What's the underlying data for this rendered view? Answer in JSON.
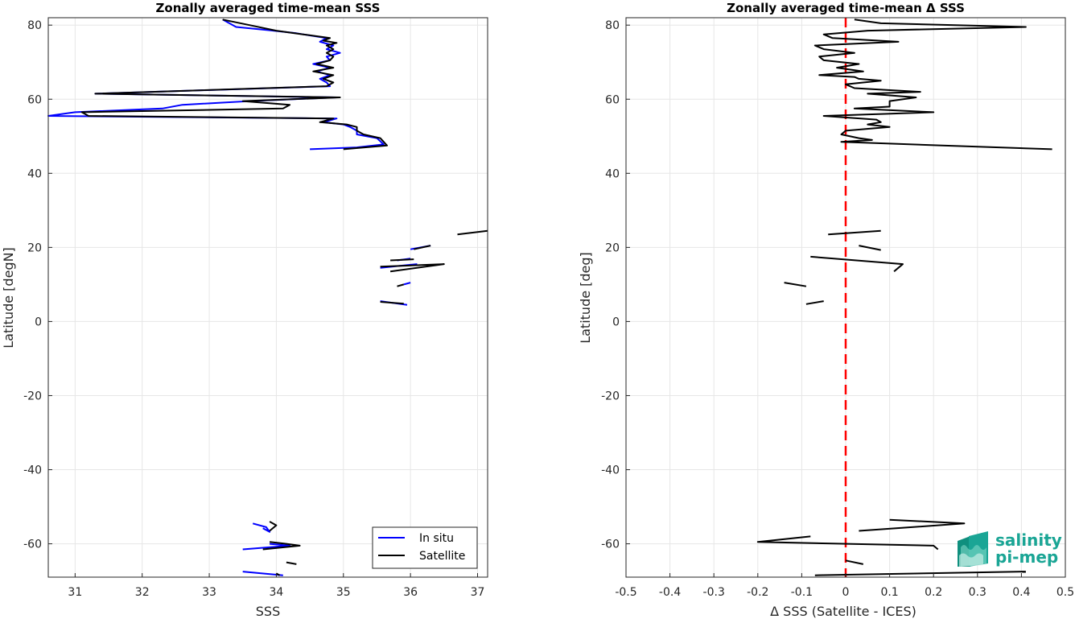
{
  "colors": {
    "insitu": "#0000ff",
    "satellite": "#000000",
    "zero_line": "#ff0000",
    "grid": "#e6e6e6",
    "axis": "#262626",
    "logo": "#1aa595"
  },
  "logo": {
    "line1": "salinity",
    "line2": "pi-mep"
  },
  "chart_data": [
    {
      "type": "line",
      "title": "Zonally averaged time-mean SSS",
      "xlabel": "SSS",
      "ylabel": "Latitude [degN]",
      "xlim": [
        30.6,
        37.15
      ],
      "ylim": [
        -69,
        82
      ],
      "xticks": [
        31,
        32,
        33,
        34,
        35,
        36,
        37
      ],
      "yticks": [
        -60,
        -40,
        -20,
        0,
        20,
        40,
        60,
        80
      ],
      "grid": true,
      "legend": {
        "position": "bottom-right",
        "entries": [
          "In situ",
          "Satellite"
        ]
      },
      "series": [
        {
          "name": "In situ",
          "color": "#0000ff",
          "segments": [
            [
              [
                33.2,
                81.5
              ],
              [
                33.4,
                79.5
              ],
              [
                33.9,
                78.6
              ],
              [
                34.3,
                77.8
              ],
              [
                34.75,
                76.5
              ],
              [
                34.65,
                75.5
              ],
              [
                34.85,
                74.5
              ],
              [
                34.75,
                73.5
              ],
              [
                34.95,
                72.5
              ],
              [
                34.75,
                71.5
              ],
              [
                34.8,
                70.5
              ],
              [
                34.55,
                69.5
              ],
              [
                34.8,
                68.5
              ],
              [
                34.6,
                67.5
              ],
              [
                34.8,
                66.5
              ],
              [
                34.65,
                65.5
              ],
              [
                34.75,
                64.5
              ],
              [
                34.8,
                63.5
              ],
              [
                31.3,
                61.5
              ],
              [
                34.9,
                60.5
              ],
              [
                33.6,
                59.5
              ],
              [
                32.6,
                58.5
              ],
              [
                32.3,
                57.5
              ],
              [
                31.0,
                56.5
              ],
              [
                30.6,
                55.5
              ],
              [
                34.9,
                54.8
              ],
              [
                34.7,
                53.8
              ],
              [
                35.0,
                53.2
              ],
              [
                35.1,
                52.5
              ],
              [
                35.2,
                51.5
              ],
              [
                35.2,
                50.5
              ],
              [
                35.5,
                49.5
              ],
              [
                35.6,
                47.8
              ],
              [
                35.2,
                47.0
              ],
              [
                34.5,
                46.5
              ]
            ],
            [
              [
                36.0,
                19.5
              ],
              [
                36.3,
                20.5
              ]
            ],
            [
              [
                35.8,
                16.5
              ],
              [
                36.0,
                17.0
              ]
            ],
            [
              [
                35.55,
                14.5
              ],
              [
                36.1,
                15.5
              ]
            ],
            [
              [
                35.9,
                10.0
              ],
              [
                36.0,
                10.5
              ]
            ],
            [
              [
                35.55,
                5.5
              ],
              [
                35.95,
                4.5
              ]
            ],
            [
              [
                33.65,
                -54.5
              ],
              [
                33.85,
                -55.5
              ],
              [
                33.9,
                -56.8
              ],
              [
                33.8,
                -55.8
              ]
            ],
            [
              [
                33.9,
                -60.0
              ],
              [
                34.2,
                -60.5
              ],
              [
                33.5,
                -61.5
              ]
            ],
            [
              [
                33.5,
                -67.5
              ],
              [
                34.1,
                -68.5
              ]
            ]
          ]
        },
        {
          "name": "Satellite",
          "color": "#000000",
          "segments": [
            [
              [
                33.2,
                81.5
              ],
              [
                33.6,
                80.0
              ],
              [
                34.0,
                78.5
              ],
              [
                34.4,
                77.5
              ],
              [
                34.8,
                76.5
              ],
              [
                34.7,
                75.8
              ],
              [
                34.9,
                75.2
              ],
              [
                34.75,
                74.5
              ],
              [
                34.85,
                73.5
              ],
              [
                34.75,
                72.5
              ],
              [
                34.85,
                71.5
              ],
              [
                34.8,
                70.5
              ],
              [
                34.6,
                69.5
              ],
              [
                34.85,
                68.5
              ],
              [
                34.55,
                67.5
              ],
              [
                34.85,
                66.5
              ],
              [
                34.7,
                65.5
              ],
              [
                34.85,
                64.5
              ],
              [
                34.75,
                63.5
              ],
              [
                31.3,
                61.5
              ],
              [
                34.95,
                60.5
              ],
              [
                33.5,
                59.5
              ],
              [
                34.2,
                58.5
              ],
              [
                34.1,
                57.5
              ],
              [
                31.1,
                56.5
              ],
              [
                31.2,
                55.5
              ],
              [
                34.85,
                54.8
              ],
              [
                34.65,
                53.8
              ],
              [
                35.05,
                53.2
              ],
              [
                35.2,
                52.5
              ],
              [
                35.2,
                51.5
              ],
              [
                35.3,
                50.5
              ],
              [
                35.55,
                49.5
              ],
              [
                35.65,
                47.5
              ],
              [
                35.0,
                46.5
              ]
            ],
            [
              [
                36.05,
                19.5
              ],
              [
                36.3,
                20.5
              ]
            ],
            [
              [
                35.7,
                16.5
              ],
              [
                36.05,
                16.8
              ]
            ],
            [
              [
                35.55,
                14.8
              ],
              [
                36.5,
                15.5
              ],
              [
                35.7,
                13.5
              ]
            ],
            [
              [
                35.8,
                9.5
              ],
              [
                35.9,
                10.0
              ]
            ],
            [
              [
                35.55,
                5.3
              ],
              [
                35.9,
                4.8
              ]
            ],
            [
              [
                36.7,
                23.5
              ],
              [
                37.15,
                24.5
              ]
            ],
            [
              [
                33.9,
                -54.0
              ],
              [
                34.0,
                -55.0
              ],
              [
                33.9,
                -56.5
              ]
            ],
            [
              [
                33.9,
                -59.5
              ],
              [
                34.15,
                -60.0
              ],
              [
                34.35,
                -60.5
              ],
              [
                33.8,
                -61.5
              ]
            ],
            [
              [
                34.15,
                -65.0
              ],
              [
                34.3,
                -65.5
              ]
            ],
            [
              [
                34.0,
                -68.0
              ],
              [
                34.05,
                -68.5
              ]
            ]
          ]
        }
      ]
    },
    {
      "type": "line",
      "title": "Zonally averaged time-mean Δ SSS",
      "xlabel": "Δ SSS (Satellite - ICES)",
      "ylabel": "Latitude [deg]",
      "xlim": [
        -0.5,
        0.5
      ],
      "ylim": [
        -69,
        82
      ],
      "xticks": [
        -0.5,
        -0.4,
        -0.3,
        -0.2,
        -0.1,
        0,
        0.1,
        0.2,
        0.3,
        0.4,
        0.5
      ],
      "yticks": [
        -60,
        -40,
        -20,
        0,
        20,
        40,
        60,
        80
      ],
      "grid": true,
      "zero_line": {
        "x": 0
      },
      "series": [
        {
          "color": "#000000",
          "segments": [
            [
              [
                0.02,
                81.5
              ],
              [
                0.08,
                80.5
              ],
              [
                0.41,
                79.5
              ],
              [
                0.05,
                78.5
              ],
              [
                -0.05,
                77.5
              ],
              [
                -0.03,
                76.5
              ],
              [
                0.12,
                75.5
              ],
              [
                -0.07,
                74.5
              ],
              [
                -0.05,
                73.5
              ],
              [
                0.02,
                72.5
              ],
              [
                -0.06,
                71.5
              ],
              [
                -0.05,
                70.5
              ],
              [
                0.03,
                69.5
              ],
              [
                -0.02,
                68.5
              ],
              [
                0.04,
                67.5
              ],
              [
                -0.06,
                66.5
              ],
              [
                0.02,
                66.0
              ],
              [
                0.03,
                65.5
              ],
              [
                0.08,
                65.0
              ],
              [
                0.0,
                64.0
              ],
              [
                0.02,
                63.0
              ],
              [
                0.17,
                62.0
              ],
              [
                0.05,
                61.5
              ],
              [
                0.16,
                60.5
              ],
              [
                0.1,
                59.5
              ],
              [
                0.1,
                58.0
              ],
              [
                0.02,
                57.5
              ],
              [
                0.2,
                56.5
              ],
              [
                -0.05,
                55.5
              ],
              [
                0.07,
                54.5
              ],
              [
                0.08,
                53.8
              ],
              [
                0.05,
                53.2
              ],
              [
                0.1,
                52.5
              ],
              [
                0.0,
                51.5
              ],
              [
                -0.01,
                50.5
              ],
              [
                0.03,
                49.5
              ],
              [
                0.06,
                49.0
              ],
              [
                -0.01,
                48.5
              ],
              [
                0.22,
                47.5
              ],
              [
                0.47,
                46.5
              ]
            ],
            [
              [
                -0.04,
                23.5
              ],
              [
                0.08,
                24.5
              ]
            ],
            [
              [
                0.03,
                20.5
              ],
              [
                0.08,
                19.3
              ]
            ],
            [
              [
                -0.08,
                17.5
              ],
              [
                0.13,
                15.5
              ],
              [
                0.12,
                14.5
              ],
              [
                0.11,
                13.5
              ]
            ],
            [
              [
                -0.14,
                10.5
              ],
              [
                -0.09,
                9.5
              ]
            ],
            [
              [
                -0.09,
                4.7
              ],
              [
                -0.05,
                5.5
              ]
            ],
            [
              [
                0.1,
                -53.5
              ],
              [
                0.27,
                -54.5
              ],
              [
                0.03,
                -56.5
              ]
            ],
            [
              [
                -0.08,
                -58.0
              ],
              [
                -0.2,
                -59.5
              ],
              [
                0.2,
                -60.5
              ],
              [
                0.21,
                -61.5
              ]
            ],
            [
              [
                0.0,
                -64.5
              ],
              [
                0.04,
                -65.5
              ]
            ],
            [
              [
                -0.07,
                -68.5
              ],
              [
                0.41,
                -67.5
              ]
            ]
          ]
        }
      ]
    }
  ]
}
